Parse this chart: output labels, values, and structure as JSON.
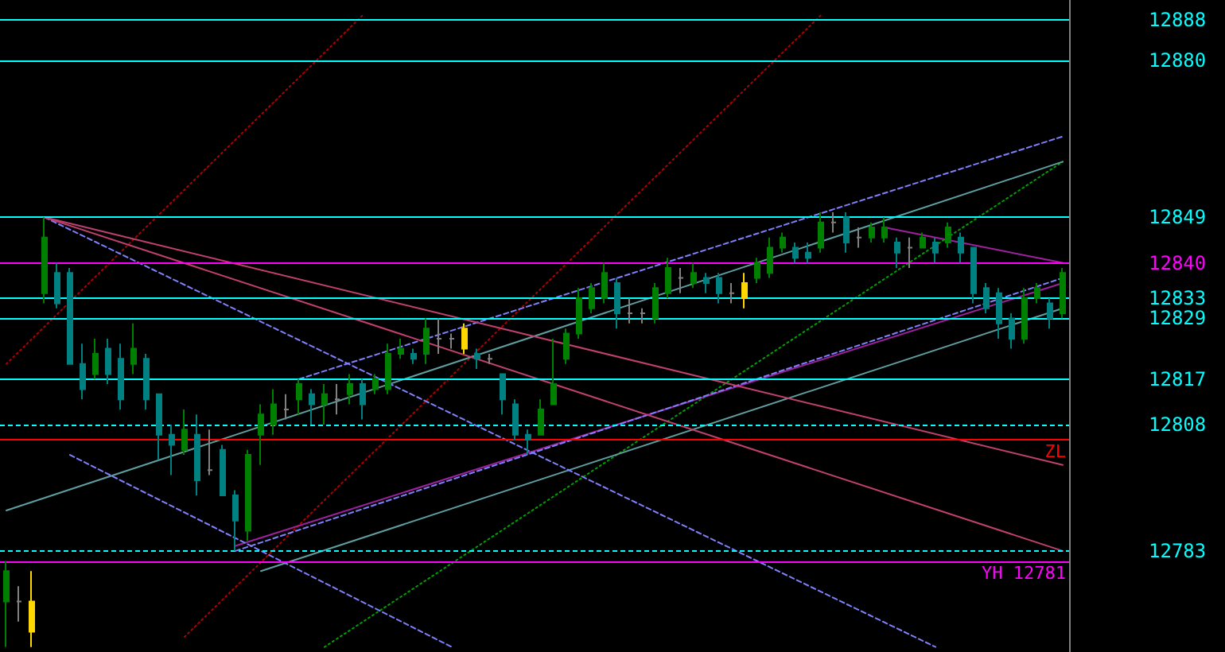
{
  "chart_data": {
    "type": "candlestick",
    "categories": [
      null,
      null,
      null,
      null,
      null,
      null,
      null,
      null,
      null,
      null,
      null,
      null,
      null,
      null,
      null,
      null,
      null,
      null,
      null,
      null,
      null,
      null,
      null,
      null,
      null,
      null,
      null,
      null,
      null,
      null,
      null,
      null,
      null,
      null,
      null,
      null,
      null,
      null,
      null,
      null,
      null,
      null,
      null,
      null,
      null,
      null,
      null,
      null,
      null,
      null,
      null,
      null,
      null,
      null,
      null,
      null,
      null,
      null,
      null,
      null,
      null,
      null,
      null,
      null,
      null,
      null,
      null,
      null,
      null,
      null,
      null,
      null,
      null,
      null,
      null,
      null,
      null,
      null,
      null,
      null,
      null,
      null,
      null,
      null
    ],
    "ohlc": [
      [
        12773,
        12781,
        12764,
        12779
      ],
      [
        12773,
        12776,
        12769,
        12773
      ],
      [
        12773,
        12779,
        12764,
        12767
      ],
      [
        12834,
        12849,
        12832,
        12845
      ],
      [
        12838,
        12840,
        12831,
        12832
      ],
      [
        12838,
        12839,
        12820,
        12820
      ],
      [
        12820,
        12824,
        12813,
        12815
      ],
      [
        12818,
        12825,
        12817,
        12822
      ],
      [
        12823,
        12825,
        12816,
        12818
      ],
      [
        12821,
        12824,
        12811,
        12813
      ],
      [
        12820,
        12828,
        12818,
        12823
      ],
      [
        12821,
        12822,
        12811,
        12813
      ],
      [
        12814,
        12814,
        12801,
        12806
      ],
      [
        12806,
        12808,
        12798,
        12804
      ],
      [
        12803,
        12811,
        12802,
        12807
      ],
      [
        12806,
        12810,
        12794,
        12797
      ],
      [
        12799,
        12807,
        12798,
        12799
      ],
      [
        12803,
        12804,
        12794,
        12794
      ],
      [
        12794,
        12795,
        12783,
        12789
      ],
      [
        12787,
        12803,
        12785,
        12802
      ],
      [
        12806,
        12812,
        12800,
        12810
      ],
      [
        12808,
        12815,
        12806,
        12812
      ],
      [
        12811,
        12814,
        12809,
        12811
      ],
      [
        12813,
        12817,
        12810,
        12816
      ],
      [
        12814,
        12815,
        12808,
        12812
      ],
      [
        12812,
        12816,
        12808,
        12814
      ],
      [
        12813,
        12816,
        12810,
        12813
      ],
      [
        12814,
        12818,
        12812,
        12816
      ],
      [
        12816,
        12817,
        12809,
        12812
      ],
      [
        12815,
        12818,
        12814,
        12817
      ],
      [
        12815,
        12824,
        12814,
        12822
      ],
      [
        12822,
        12825,
        12821,
        12823
      ],
      [
        12822,
        12823,
        12820,
        12821
      ],
      [
        12822,
        12829,
        12820,
        12827
      ],
      [
        12825,
        12829,
        12822,
        12825
      ],
      [
        12825,
        12826,
        12823,
        12825
      ],
      [
        12827,
        12828,
        12822,
        12823
      ],
      [
        12822,
        12823,
        12819,
        12821
      ],
      [
        12821,
        12822,
        12820,
        12821
      ],
      [
        12818,
        12818,
        12810,
        12813
      ],
      [
        12812,
        12813,
        12805,
        12806
      ],
      [
        12806,
        12807,
        12802,
        12805
      ],
      [
        12806,
        12813,
        12806,
        12811
      ],
      [
        12812,
        12825,
        12812,
        12816
      ],
      [
        12821,
        12827,
        12820,
        12826
      ],
      [
        12826,
        12835,
        12825,
        12833
      ],
      [
        12831,
        12836,
        12830,
        12835
      ],
      [
        12833,
        12840,
        12832,
        12838
      ],
      [
        12836,
        12837,
        12827,
        12830
      ],
      [
        12830,
        12833,
        12828,
        12830
      ],
      [
        12830,
        12831,
        12828,
        12830
      ],
      [
        12829,
        12836,
        12828,
        12835
      ],
      [
        12834,
        12841,
        12833,
        12839
      ],
      [
        12837,
        12839,
        12834,
        12837
      ],
      [
        12836,
        12840,
        12835,
        12838
      ],
      [
        12837,
        12838,
        12834,
        12836
      ],
      [
        12837,
        12838,
        12832,
        12834
      ],
      [
        12834,
        12836,
        12832,
        12834
      ],
      [
        12836,
        12838,
        12831,
        12833
      ],
      [
        12837,
        12841,
        12836,
        12840
      ],
      [
        12838,
        12845,
        12837,
        12843
      ],
      [
        12843,
        12846,
        12842,
        12845
      ],
      [
        12843,
        12844,
        12840,
        12841
      ],
      [
        12842,
        12844,
        12840,
        12841
      ],
      [
        12843,
        12850,
        12842,
        12848
      ],
      [
        12848,
        12850,
        12846,
        12848
      ],
      [
        12849,
        12850,
        12842,
        12844
      ],
      [
        12845,
        12847,
        12843,
        12845
      ],
      [
        12845,
        12848,
        12844,
        12847
      ],
      [
        12845,
        12849,
        12844,
        12847
      ],
      [
        12844,
        12845,
        12839,
        12842
      ],
      [
        12843,
        12845,
        12839,
        12843
      ],
      [
        12843,
        12846,
        12843,
        12845
      ],
      [
        12844,
        12845,
        12840,
        12842
      ],
      [
        12844,
        12848,
        12843,
        12847
      ],
      [
        12845,
        12846,
        12840,
        12842
      ],
      [
        12843,
        12843,
        12832,
        12834
      ],
      [
        12835,
        12836,
        12830,
        12831
      ],
      [
        12834,
        12835,
        12825,
        12828
      ],
      [
        12829,
        12830,
        12823,
        12825
      ],
      [
        12825,
        12835,
        12824,
        12833
      ],
      [
        12833,
        12836,
        12832,
        12835
      ],
      [
        12832,
        12833,
        12827,
        12829
      ],
      [
        12830,
        12839,
        12829,
        12838
      ]
    ],
    "colors": [
      "#008000",
      "#808080",
      "#ffd700",
      "#008000",
      "#008080",
      "#008080",
      "#008080",
      "#008000",
      "#008080",
      "#008080",
      "#008000",
      "#008080",
      "#008080",
      "#008080",
      "#008000",
      "#008080",
      "#808080",
      "#008080",
      "#008080",
      "#008000",
      "#008000",
      "#008000",
      "#808080",
      "#008000",
      "#008080",
      "#008000",
      "#808080",
      "#008000",
      "#008080",
      "#008000",
      "#008000",
      "#008000",
      "#008080",
      "#008000",
      "#808080",
      "#808080",
      "#ffd700",
      "#008080",
      "#808080",
      "#008080",
      "#008080",
      "#008080",
      "#008000",
      "#008000",
      "#008000",
      "#008000",
      "#008000",
      "#008000",
      "#008080",
      "#808080",
      "#808080",
      "#008000",
      "#008000",
      "#808080",
      "#008000",
      "#008080",
      "#008080",
      "#808080",
      "#ffd700",
      "#008000",
      "#008000",
      "#008000",
      "#008080",
      "#008080",
      "#008000",
      "#808080",
      "#008080",
      "#808080",
      "#008000",
      "#008000",
      "#008080",
      "#808080",
      "#008000",
      "#008080",
      "#008000",
      "#008080",
      "#008080",
      "#008080",
      "#008080",
      "#008080",
      "#008000",
      "#008000",
      "#008080",
      "#008000"
    ],
    "series": [
      {
        "type": "line",
        "color": "#b00000",
        "line_style": "dotted",
        "values": [
          12820,
          null,
          null,
          null,
          null,
          null,
          null,
          null,
          null,
          null,
          null,
          null,
          null,
          null,
          null,
          null,
          null,
          null,
          null,
          null,
          null,
          null,
          null,
          null,
          null,
          null,
          null,
          null,
          12889,
          null,
          null,
          null,
          null,
          null,
          null,
          null,
          null,
          null,
          null,
          null,
          null,
          null,
          null,
          null,
          null,
          null,
          null,
          null,
          null,
          null,
          null,
          null,
          null,
          null,
          null,
          null,
          null,
          null,
          null,
          null,
          null,
          null,
          null,
          null,
          null,
          null,
          null,
          null,
          null,
          null,
          null,
          null,
          null,
          null,
          null,
          null,
          null,
          null,
          null,
          null,
          null,
          null,
          null,
          null
        ]
      },
      {
        "type": "line",
        "color": "#b00000",
        "line_style": "dotted",
        "values": [
          null,
          null,
          null,
          null,
          null,
          null,
          null,
          null,
          null,
          null,
          null,
          null,
          null,
          null,
          12766,
          null,
          null,
          null,
          null,
          null,
          null,
          null,
          null,
          null,
          null,
          null,
          null,
          null,
          null,
          null,
          null,
          null,
          null,
          null,
          null,
          null,
          null,
          null,
          null,
          null,
          null,
          null,
          null,
          null,
          null,
          null,
          null,
          null,
          null,
          null,
          null,
          null,
          null,
          null,
          null,
          null,
          null,
          null,
          null,
          null,
          null,
          null,
          null,
          null,
          12889,
          null,
          null,
          null,
          null,
          null,
          null,
          null,
          null,
          null,
          null,
          null,
          null,
          null,
          null,
          null,
          null,
          null,
          null,
          null
        ]
      },
      {
        "type": "line",
        "color": "#00a000",
        "line_style": "dotted",
        "values": [
          null,
          null,
          null,
          null,
          null,
          null,
          null,
          null,
          null,
          null,
          null,
          null,
          null,
          null,
          null,
          null,
          null,
          null,
          null,
          null,
          null,
          null,
          null,
          null,
          null,
          12764,
          null,
          null,
          null,
          null,
          null,
          null,
          null,
          null,
          null,
          null,
          null,
          null,
          null,
          null,
          null,
          null,
          null,
          null,
          null,
          null,
          null,
          null,
          null,
          null,
          null,
          null,
          null,
          null,
          null,
          null,
          null,
          null,
          null,
          null,
          null,
          null,
          null,
          null,
          null,
          null,
          null,
          null,
          null,
          null,
          null,
          null,
          null,
          null,
          null,
          null,
          null,
          null,
          null,
          null,
          null,
          null,
          null,
          12860
        ]
      },
      {
        "type": "line",
        "color": "#5f9ea0",
        "line_style": "solid",
        "values": [
          12791,
          null,
          null,
          null,
          null,
          null,
          null,
          null,
          null,
          null,
          null,
          null,
          null,
          null,
          null,
          null,
          null,
          null,
          null,
          null,
          null,
          null,
          null,
          null,
          null,
          null,
          null,
          null,
          null,
          null,
          null,
          null,
          null,
          null,
          null,
          null,
          null,
          null,
          null,
          null,
          null,
          null,
          null,
          null,
          null,
          null,
          null,
          null,
          null,
          null,
          null,
          null,
          null,
          null,
          null,
          null,
          null,
          null,
          null,
          null,
          null,
          null,
          null,
          null,
          null,
          null,
          null,
          null,
          null,
          null,
          null,
          null,
          null,
          null,
          null,
          null,
          null,
          null,
          null,
          null,
          null,
          null,
          null,
          12860
        ]
      },
      {
        "type": "line",
        "color": "#5f9ea0",
        "line_style": "solid",
        "values": [
          null,
          null,
          null,
          null,
          null,
          null,
          null,
          null,
          null,
          null,
          null,
          null,
          null,
          null,
          null,
          null,
          null,
          null,
          null,
          null,
          12779,
          null,
          null,
          null,
          null,
          null,
          null,
          null,
          null,
          null,
          null,
          null,
          null,
          null,
          null,
          null,
          null,
          null,
          null,
          null,
          null,
          null,
          null,
          null,
          null,
          null,
          null,
          null,
          null,
          null,
          null,
          null,
          null,
          null,
          null,
          null,
          null,
          null,
          null,
          null,
          null,
          null,
          null,
          null,
          null,
          null,
          null,
          null,
          null,
          null,
          null,
          null,
          null,
          null,
          null,
          null,
          null,
          null,
          null,
          null,
          null,
          null,
          null,
          12831
        ]
      },
      {
        "type": "line",
        "color": "#a020a0",
        "line_style": "solid",
        "values": [
          null,
          null,
          null,
          null,
          null,
          null,
          null,
          null,
          null,
          null,
          null,
          null,
          null,
          null,
          null,
          null,
          null,
          null,
          12784,
          null,
          null,
          null,
          null,
          null,
          null,
          null,
          null,
          null,
          null,
          null,
          null,
          null,
          null,
          null,
          null,
          null,
          null,
          null,
          null,
          null,
          null,
          null,
          null,
          null,
          null,
          null,
          null,
          null,
          null,
          null,
          null,
          null,
          null,
          null,
          null,
          null,
          null,
          null,
          null,
          null,
          null,
          null,
          null,
          null,
          null,
          null,
          null,
          null,
          null,
          null,
          null,
          null,
          null,
          null,
          null,
          null,
          null,
          null,
          null,
          null,
          null,
          null,
          null,
          12836
        ]
      },
      {
        "type": "line",
        "color": "#8080ff",
        "line_style": "dashed",
        "values": [
          null,
          null,
          null,
          12849,
          null,
          null,
          null,
          null,
          null,
          null,
          null,
          null,
          null,
          null,
          null,
          null,
          null,
          null,
          null,
          null,
          null,
          null,
          null,
          null,
          null,
          null,
          null,
          null,
          null,
          null,
          null,
          null,
          null,
          null,
          null,
          null,
          null,
          null,
          null,
          null,
          null,
          null,
          null,
          null,
          null,
          null,
          null,
          null,
          null,
          null,
          null,
          null,
          null,
          null,
          null,
          null,
          null,
          null,
          null,
          null,
          null,
          null,
          null,
          null,
          null,
          null,
          null,
          null,
          null,
          null,
          null,
          null,
          null,
          12764,
          null,
          null,
          null,
          null,
          null,
          null,
          null,
          null,
          null,
          null
        ]
      },
      {
        "type": "line",
        "color": "#8080ff",
        "line_style": "dashed",
        "values": [
          null,
          null,
          null,
          null,
          null,
          12802,
          null,
          null,
          null,
          null,
          null,
          null,
          null,
          null,
          null,
          null,
          null,
          null,
          null,
          null,
          null,
          null,
          null,
          null,
          null,
          null,
          null,
          null,
          null,
          null,
          null,
          null,
          null,
          null,
          null,
          12764,
          null,
          null,
          null,
          null,
          null,
          null,
          null,
          null,
          null,
          null,
          null,
          null,
          null,
          null,
          null,
          null,
          null,
          null,
          null,
          null,
          null,
          null,
          null,
          null,
          null,
          null,
          null,
          null,
          null,
          null,
          null,
          null,
          null,
          null,
          null,
          null,
          null,
          null,
          null,
          null,
          null,
          null,
          null,
          null,
          null,
          null,
          null,
          null
        ]
      },
      {
        "type": "line",
        "color": "#8080ff",
        "line_style": "dashed",
        "values": [
          null,
          null,
          null,
          null,
          null,
          null,
          null,
          null,
          null,
          null,
          null,
          null,
          null,
          null,
          null,
          null,
          null,
          null,
          null,
          null,
          null,
          null,
          null,
          12817,
          null,
          null,
          null,
          null,
          null,
          null,
          null,
          null,
          null,
          null,
          null,
          null,
          null,
          null,
          null,
          null,
          null,
          null,
          null,
          null,
          null,
          null,
          null,
          null,
          null,
          null,
          null,
          null,
          null,
          null,
          null,
          null,
          null,
          null,
          null,
          null,
          null,
          null,
          null,
          null,
          null,
          null,
          null,
          null,
          null,
          null,
          null,
          null,
          null,
          null,
          null,
          null,
          null,
          null,
          null,
          null,
          null,
          null,
          null,
          12865
        ]
      },
      {
        "type": "line",
        "color": "#8080ff",
        "line_style": "dashed",
        "values": [
          null,
          null,
          null,
          null,
          null,
          null,
          null,
          null,
          null,
          null,
          null,
          null,
          null,
          null,
          null,
          null,
          null,
          null,
          12783,
          null,
          null,
          null,
          null,
          null,
          null,
          null,
          null,
          null,
          null,
          null,
          null,
          null,
          null,
          null,
          null,
          null,
          null,
          null,
          null,
          null,
          null,
          null,
          null,
          null,
          null,
          null,
          null,
          null,
          null,
          null,
          null,
          null,
          null,
          null,
          null,
          null,
          null,
          null,
          null,
          null,
          null,
          null,
          null,
          null,
          null,
          null,
          null,
          null,
          null,
          null,
          null,
          null,
          null,
          null,
          null,
          null,
          null,
          null,
          null,
          null,
          null,
          null,
          null,
          12837
        ]
      },
      {
        "type": "line",
        "color": "#c04070",
        "line_style": "solid",
        "values": [
          null,
          null,
          null,
          12849,
          null,
          null,
          null,
          null,
          null,
          null,
          null,
          null,
          null,
          null,
          null,
          null,
          null,
          null,
          null,
          null,
          null,
          null,
          null,
          null,
          null,
          null,
          null,
          null,
          null,
          null,
          null,
          null,
          null,
          null,
          null,
          null,
          null,
          null,
          null,
          null,
          null,
          null,
          null,
          null,
          null,
          null,
          null,
          null,
          null,
          null,
          null,
          null,
          null,
          null,
          null,
          null,
          null,
          null,
          null,
          null,
          null,
          null,
          null,
          null,
          null,
          null,
          null,
          null,
          null,
          null,
          null,
          null,
          null,
          null,
          null,
          null,
          null,
          null,
          null,
          null,
          null,
          null,
          null,
          12783
        ]
      },
      {
        "type": "line",
        "color": "#c04070",
        "line_style": "solid",
        "values": [
          null,
          null,
          null,
          12849,
          null,
          null,
          null,
          null,
          null,
          null,
          null,
          null,
          null,
          null,
          null,
          null,
          null,
          null,
          null,
          null,
          null,
          null,
          null,
          null,
          null,
          null,
          null,
          null,
          null,
          null,
          null,
          null,
          null,
          null,
          null,
          null,
          null,
          null,
          null,
          null,
          null,
          null,
          null,
          null,
          null,
          null,
          null,
          null,
          null,
          null,
          null,
          null,
          null,
          null,
          null,
          null,
          null,
          null,
          null,
          null,
          null,
          null,
          null,
          null,
          null,
          null,
          null,
          null,
          null,
          null,
          null,
          null,
          null,
          null,
          null,
          null,
          null,
          null,
          null,
          null,
          null,
          null,
          null,
          12800
        ]
      },
      {
        "type": "line",
        "color": "#a020a0",
        "line_style": "solid",
        "values": [
          null,
          null,
          null,
          null,
          null,
          null,
          null,
          null,
          null,
          null,
          null,
          null,
          null,
          null,
          null,
          null,
          null,
          null,
          null,
          null,
          null,
          null,
          null,
          null,
          null,
          null,
          null,
          null,
          null,
          null,
          null,
          null,
          null,
          null,
          null,
          null,
          null,
          null,
          null,
          null,
          null,
          null,
          null,
          null,
          null,
          null,
          null,
          null,
          null,
          null,
          null,
          null,
          null,
          null,
          null,
          null,
          null,
          null,
          null,
          null,
          null,
          null,
          null,
          null,
          null,
          null,
          null,
          null,
          null,
          12847,
          null,
          null,
          null,
          null,
          null,
          null,
          null,
          null,
          null,
          null,
          null,
          null,
          null,
          12840
        ]
      }
    ],
    "ref_lines": [
      {
        "axis": "y",
        "value": 12888,
        "color": "#00ffff",
        "line_style": "solid"
      },
      {
        "axis": "y",
        "value": 12880,
        "color": "#00ffff",
        "line_style": "solid"
      },
      {
        "axis": "y",
        "value": 12849,
        "color": "#00ffff",
        "line_style": "solid"
      },
      {
        "axis": "y",
        "value": 12840,
        "color": "#ff00ff",
        "line_style": "solid"
      },
      {
        "axis": "y",
        "value": 12833,
        "color": "#00ffff",
        "line_style": "solid"
      },
      {
        "axis": "y",
        "value": 12829,
        "color": "#00ffff",
        "line_style": "solid"
      },
      {
        "axis": "y",
        "value": 12817,
        "color": "#00ffff",
        "line_style": "solid"
      },
      {
        "axis": "y",
        "value": 12808,
        "color": "#00ffff",
        "line_style": "dashed"
      },
      {
        "axis": "y",
        "value": 12805,
        "label": "ZL",
        "color": "#ff0000",
        "line_style": "solid"
      },
      {
        "axis": "y",
        "value": 12783,
        "color": "#00ffff",
        "line_style": "dashed"
      },
      {
        "axis": "y",
        "value": 12781,
        "label": "YH 12781",
        "color": "#ff00ff",
        "line_style": "solid"
      }
    ],
    "ylim": [
      12763,
      12892
    ],
    "yticks": [
      12888,
      12880,
      12849,
      12840,
      12833,
      12829,
      12817,
      12808,
      12783
    ],
    "tick_labels": "y"
  }
}
